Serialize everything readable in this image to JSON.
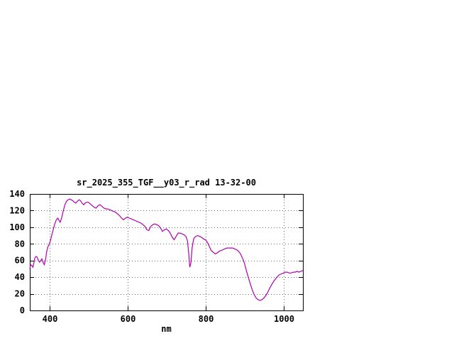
{
  "chart_data": {
    "type": "line",
    "title": "sr_2025_355_TGF__y03_r_rad 13-32-00",
    "xlabel": "nm",
    "ylabel": "",
    "xlim": [
      350,
      1050
    ],
    "ylim": [
      0,
      140
    ],
    "x_ticks": [
      400,
      600,
      800,
      1000
    ],
    "y_ticks": [
      0,
      20,
      40,
      60,
      80,
      100,
      120,
      140
    ],
    "grid": true,
    "legend_position": "none",
    "line_color": "#b000b0",
    "series": [
      {
        "points": [
          [
            350,
            50
          ],
          [
            352,
            55
          ],
          [
            355,
            54
          ],
          [
            358,
            52
          ],
          [
            360,
            56
          ],
          [
            363,
            63
          ],
          [
            366,
            65
          ],
          [
            369,
            64
          ],
          [
            372,
            60
          ],
          [
            375,
            58
          ],
          [
            378,
            60
          ],
          [
            381,
            62
          ],
          [
            384,
            58
          ],
          [
            387,
            55
          ],
          [
            390,
            60
          ],
          [
            393,
            70
          ],
          [
            396,
            76
          ],
          [
            400,
            80
          ],
          [
            403,
            84
          ],
          [
            406,
            90
          ],
          [
            410,
            97
          ],
          [
            414,
            104
          ],
          [
            418,
            109
          ],
          [
            422,
            111
          ],
          [
            425,
            108
          ],
          [
            428,
            106
          ],
          [
            432,
            112
          ],
          [
            436,
            120
          ],
          [
            440,
            127
          ],
          [
            444,
            131
          ],
          [
            448,
            133
          ],
          [
            452,
            134
          ],
          [
            456,
            133
          ],
          [
            460,
            132
          ],
          [
            464,
            130
          ],
          [
            468,
            129
          ],
          [
            472,
            131
          ],
          [
            476,
            133
          ],
          [
            480,
            132
          ],
          [
            484,
            129
          ],
          [
            488,
            127
          ],
          [
            492,
            129
          ],
          [
            496,
            130
          ],
          [
            500,
            130
          ],
          [
            505,
            128
          ],
          [
            510,
            126
          ],
          [
            515,
            124
          ],
          [
            520,
            123
          ],
          [
            525,
            126
          ],
          [
            530,
            127
          ],
          [
            535,
            125
          ],
          [
            540,
            123
          ],
          [
            545,
            122
          ],
          [
            550,
            122
          ],
          [
            555,
            121
          ],
          [
            560,
            120
          ],
          [
            565,
            119
          ],
          [
            570,
            118
          ],
          [
            575,
            116
          ],
          [
            580,
            114
          ],
          [
            585,
            111
          ],
          [
            590,
            109
          ],
          [
            595,
            111
          ],
          [
            600,
            112
          ],
          [
            605,
            111
          ],
          [
            610,
            110
          ],
          [
            615,
            109
          ],
          [
            620,
            108
          ],
          [
            625,
            107
          ],
          [
            630,
            106
          ],
          [
            635,
            105
          ],
          [
            640,
            103
          ],
          [
            645,
            101
          ],
          [
            650,
            97
          ],
          [
            655,
            96
          ],
          [
            660,
            101
          ],
          [
            665,
            103
          ],
          [
            670,
            104
          ],
          [
            675,
            103
          ],
          [
            680,
            102
          ],
          [
            685,
            99
          ],
          [
            690,
            95
          ],
          [
            695,
            97
          ],
          [
            700,
            98
          ],
          [
            705,
            96
          ],
          [
            710,
            93
          ],
          [
            715,
            88
          ],
          [
            720,
            85
          ],
          [
            725,
            89
          ],
          [
            730,
            93
          ],
          [
            735,
            93
          ],
          [
            740,
            92
          ],
          [
            745,
            91
          ],
          [
            750,
            89
          ],
          [
            754,
            84
          ],
          [
            757,
            70
          ],
          [
            760,
            52
          ],
          [
            763,
            57
          ],
          [
            766,
            75
          ],
          [
            770,
            86
          ],
          [
            775,
            89
          ],
          [
            780,
            90
          ],
          [
            785,
            89
          ],
          [
            790,
            88
          ],
          [
            795,
            86
          ],
          [
            800,
            85
          ],
          [
            805,
            82
          ],
          [
            810,
            77
          ],
          [
            815,
            72
          ],
          [
            820,
            70
          ],
          [
            825,
            68
          ],
          [
            830,
            69
          ],
          [
            835,
            71
          ],
          [
            840,
            72
          ],
          [
            845,
            73
          ],
          [
            850,
            74
          ],
          [
            855,
            75
          ],
          [
            860,
            75
          ],
          [
            865,
            75
          ],
          [
            870,
            75
          ],
          [
            875,
            74
          ],
          [
            880,
            73
          ],
          [
            885,
            71
          ],
          [
            890,
            68
          ],
          [
            895,
            63
          ],
          [
            900,
            57
          ],
          [
            905,
            48
          ],
          [
            910,
            40
          ],
          [
            915,
            32
          ],
          [
            920,
            25
          ],
          [
            925,
            19
          ],
          [
            930,
            15
          ],
          [
            935,
            13
          ],
          [
            940,
            12
          ],
          [
            945,
            13
          ],
          [
            950,
            15
          ],
          [
            955,
            18
          ],
          [
            960,
            22
          ],
          [
            965,
            27
          ],
          [
            970,
            31
          ],
          [
            975,
            35
          ],
          [
            980,
            38
          ],
          [
            985,
            41
          ],
          [
            990,
            43
          ],
          [
            995,
            44
          ],
          [
            1000,
            45
          ],
          [
            1005,
            46
          ],
          [
            1010,
            46
          ],
          [
            1015,
            45
          ],
          [
            1020,
            45
          ],
          [
            1025,
            46
          ],
          [
            1030,
            46
          ],
          [
            1035,
            47
          ],
          [
            1040,
            46
          ],
          [
            1045,
            47
          ],
          [
            1050,
            48
          ]
        ]
      }
    ]
  }
}
